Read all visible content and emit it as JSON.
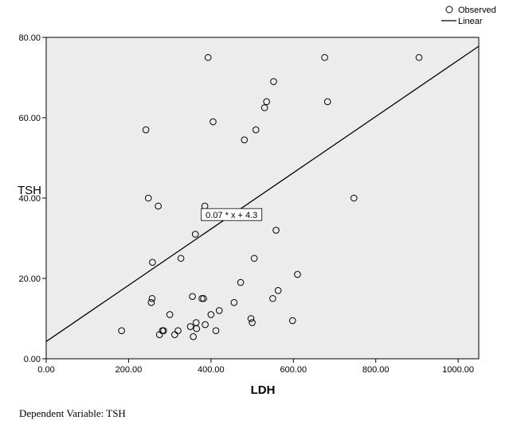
{
  "chart_data": {
    "type": "scatter",
    "xlabel": "LDH",
    "ylabel": "TSH",
    "xlim": [
      0,
      1050
    ],
    "ylim": [
      0,
      80
    ],
    "x_ticks": [
      "0.00",
      "200.00",
      "400.00",
      "600.00",
      "800.00",
      "1000.00"
    ],
    "y_ticks": [
      "0.00",
      "20.00",
      "40.00",
      "60.00",
      "80.00"
    ],
    "background": "#ececec",
    "legend": {
      "placement": "top-right",
      "observed_label": "Observed",
      "linear_label": "Linear"
    },
    "fit": {
      "slope": 0.07,
      "intercept": 4.3,
      "label": "0.07 * x + 4.3"
    },
    "series": [
      {
        "name": "Observed",
        "x": [
          183,
          242,
          248,
          255,
          257,
          258,
          272,
          275,
          282,
          285,
          300,
          312,
          320,
          327,
          350,
          355,
          357,
          362,
          364,
          365,
          378,
          382,
          385,
          386,
          393,
          400,
          405,
          412,
          420,
          456,
          472,
          481,
          497,
          500,
          505,
          509,
          530,
          535,
          550,
          552,
          558,
          563,
          598,
          610,
          676,
          683,
          747,
          905
        ],
        "y": [
          7,
          57,
          40,
          14,
          15,
          24,
          38,
          6,
          7,
          7,
          11,
          6,
          7,
          25,
          8,
          15.5,
          5.5,
          31,
          9,
          7.5,
          15,
          15,
          38,
          8.5,
          75,
          11,
          59,
          7,
          12,
          14,
          19,
          54.5,
          10,
          9,
          25,
          57,
          62.5,
          64,
          15,
          69,
          32,
          17,
          9.5,
          21,
          75,
          64,
          40,
          75
        ]
      }
    ]
  },
  "footnote": "Dependent Variable: TSH"
}
